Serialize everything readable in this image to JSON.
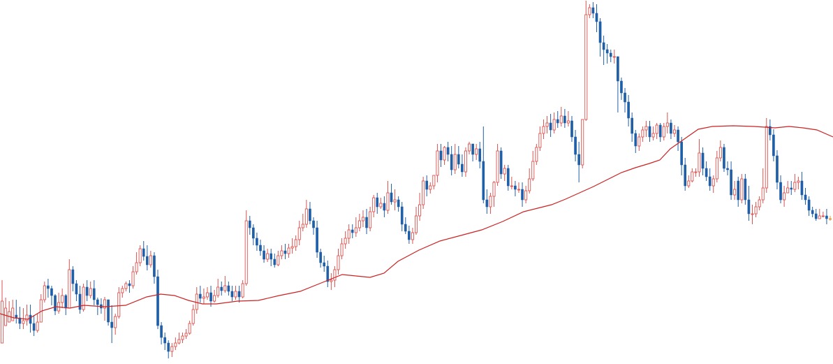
{
  "chart_data": {
    "type": "candlestick",
    "title": "",
    "xlabel": "",
    "ylabel": "",
    "grid": false,
    "legend": "none",
    "ylim": [
      0,
      521
    ],
    "colors": {
      "up": "#d9534f",
      "down": "#1f5fa8",
      "ma": "#cc2222",
      "last": "#e39a3a",
      "background": "#ffffff"
    },
    "candles": [
      [
        30,
        90,
        120,
        55
      ],
      [
        55,
        80,
        95,
        60
      ],
      [
        60,
        75,
        90,
        62
      ],
      [
        62,
        80,
        92,
        70
      ],
      [
        70,
        66,
        92,
        58
      ],
      [
        66,
        58,
        82,
        50
      ],
      [
        58,
        62,
        80,
        50
      ],
      [
        62,
        70,
        85,
        55
      ],
      [
        70,
        58,
        85,
        45
      ],
      [
        58,
        48,
        70,
        40
      ],
      [
        48,
        60,
        72,
        45
      ],
      [
        60,
        92,
        100,
        60
      ],
      [
        92,
        112,
        118,
        88
      ],
      [
        112,
        108,
        122,
        95
      ],
      [
        108,
        98,
        112,
        84
      ],
      [
        98,
        76,
        100,
        70
      ],
      [
        76,
        88,
        102,
        72
      ],
      [
        88,
        98,
        108,
        80
      ],
      [
        98,
        80,
        100,
        70
      ],
      [
        80,
        135,
        150,
        80
      ],
      [
        135,
        115,
        140,
        104
      ],
      [
        115,
        100,
        120,
        90
      ],
      [
        100,
        78,
        112,
        72
      ],
      [
        78,
        110,
        115,
        75
      ],
      [
        110,
        98,
        120,
        90
      ],
      [
        98,
        108,
        118,
        94
      ],
      [
        108,
        92,
        120,
        84
      ],
      [
        92,
        85,
        95,
        70
      ],
      [
        85,
        80,
        94,
        72
      ],
      [
        80,
        92,
        96,
        62
      ],
      [
        92,
        60,
        92,
        55
      ],
      [
        60,
        52,
        84,
        30
      ],
      [
        52,
        68,
        72,
        42
      ],
      [
        68,
        102,
        110,
        65
      ],
      [
        102,
        108,
        112,
        95
      ],
      [
        108,
        115,
        118,
        104
      ],
      [
        115,
        112,
        120,
        102
      ],
      [
        112,
        132,
        140,
        108
      ],
      [
        132,
        145,
        160,
        128
      ],
      [
        145,
        165,
        170,
        140
      ],
      [
        165,
        154,
        176,
        148
      ],
      [
        154,
        142,
        170,
        134
      ],
      [
        142,
        155,
        162,
        138
      ],
      [
        155,
        125,
        160,
        115
      ],
      [
        125,
        55,
        135,
        50
      ],
      [
        55,
        38,
        60,
        28
      ],
      [
        38,
        30,
        45,
        20
      ],
      [
        30,
        18,
        34,
        8
      ],
      [
        18,
        25,
        30,
        10
      ],
      [
        25,
        30,
        38,
        20
      ],
      [
        30,
        35,
        45,
        28
      ],
      [
        35,
        40,
        45,
        30
      ],
      [
        40,
        44,
        50,
        36
      ],
      [
        44,
        58,
        62,
        42
      ],
      [
        58,
        78,
        85,
        55
      ],
      [
        78,
        100,
        110,
        72
      ],
      [
        100,
        94,
        112,
        88
      ],
      [
        94,
        96,
        108,
        86
      ],
      [
        96,
        102,
        110,
        92
      ],
      [
        102,
        90,
        112,
        82
      ],
      [
        90,
        98,
        106,
        88
      ],
      [
        98,
        110,
        122,
        95
      ],
      [
        110,
        105,
        118,
        98
      ],
      [
        105,
        112,
        126,
        102
      ],
      [
        112,
        104,
        118,
        98
      ],
      [
        104,
        96,
        112,
        90
      ],
      [
        96,
        104,
        112,
        92
      ],
      [
        104,
        96,
        112,
        88
      ],
      [
        96,
        115,
        120,
        94
      ],
      [
        115,
        205,
        220,
        112
      ],
      [
        205,
        195,
        212,
        185
      ],
      [
        195,
        180,
        200,
        170
      ],
      [
        180,
        170,
        188,
        162
      ],
      [
        170,
        162,
        178,
        155
      ],
      [
        162,
        150,
        170,
        145
      ],
      [
        150,
        158,
        165,
        146
      ],
      [
        158,
        150,
        165,
        140
      ],
      [
        150,
        142,
        158,
        138
      ],
      [
        142,
        155,
        162,
        140
      ],
      [
        155,
        162,
        170,
        150
      ],
      [
        162,
        158,
        172,
        150
      ],
      [
        158,
        166,
        172,
        152
      ],
      [
        166,
        168,
        180,
        158
      ],
      [
        168,
        178,
        184,
        162
      ],
      [
        178,
        195,
        205,
        170
      ],
      [
        195,
        200,
        215,
        190
      ],
      [
        200,
        222,
        235,
        195
      ],
      [
        222,
        205,
        232,
        200
      ],
      [
        205,
        195,
        210,
        185
      ],
      [
        195,
        160,
        205,
        152
      ],
      [
        160,
        145,
        165,
        138
      ],
      [
        145,
        140,
        155,
        132
      ],
      [
        140,
        118,
        148,
        110
      ],
      [
        118,
        120,
        130,
        106
      ],
      [
        120,
        135,
        140,
        110
      ],
      [
        135,
        155,
        165,
        128
      ],
      [
        155,
        172,
        180,
        150
      ],
      [
        172,
        180,
        190,
        165
      ],
      [
        180,
        192,
        200,
        172
      ],
      [
        192,
        188,
        200,
        180
      ],
      [
        188,
        195,
        210,
        182
      ],
      [
        195,
        205,
        215,
        190
      ],
      [
        205,
        210,
        220,
        196
      ],
      [
        210,
        195,
        222,
        186
      ],
      [
        195,
        218,
        225,
        190
      ],
      [
        218,
        238,
        242,
        210
      ],
      [
        238,
        225,
        245,
        215
      ],
      [
        225,
        230,
        238,
        222
      ],
      [
        230,
        220,
        240,
        210
      ],
      [
        220,
        245,
        262,
        215
      ],
      [
        245,
        232,
        258,
        228
      ],
      [
        232,
        235,
        250,
        220
      ],
      [
        235,
        225,
        240,
        218
      ],
      [
        225,
        200,
        232,
        190
      ],
      [
        200,
        190,
        210,
        186
      ],
      [
        190,
        178,
        198,
        172
      ],
      [
        178,
        188,
        195,
        172
      ],
      [
        188,
        212,
        225,
        185
      ],
      [
        212,
        228,
        245,
        205
      ],
      [
        228,
        262,
        268,
        222
      ],
      [
        262,
        250,
        270,
        240
      ],
      [
        250,
        255,
        260,
        244
      ],
      [
        255,
        270,
        270,
        250
      ],
      [
        270,
        305,
        315,
        260
      ],
      [
        305,
        292,
        315,
        282
      ],
      [
        292,
        310,
        312,
        285
      ],
      [
        310,
        300,
        318,
        290
      ],
      [
        300,
        278,
        312,
        270
      ],
      [
        278,
        300,
        315,
        272
      ],
      [
        300,
        286,
        312,
        280
      ],
      [
        286,
        275,
        300,
        268
      ],
      [
        275,
        305,
        310,
        268
      ],
      [
        305,
        315,
        318,
        300
      ],
      [
        315,
        300,
        315,
        290
      ],
      [
        300,
        308,
        315,
        292
      ],
      [
        308,
        290,
        318,
        280
      ],
      [
        290,
        235,
        340,
        230
      ],
      [
        235,
        225,
        250,
        215
      ],
      [
        225,
        240,
        245,
        215
      ],
      [
        240,
        260,
        262,
        225
      ],
      [
        260,
        305,
        315,
        255
      ],
      [
        305,
        272,
        310,
        265
      ],
      [
        272,
        280,
        285,
        262
      ],
      [
        280,
        255,
        285,
        248
      ],
      [
        255,
        255,
        268,
        250
      ],
      [
        255,
        250,
        262,
        240
      ],
      [
        250,
        250,
        260,
        245
      ],
      [
        250,
        235,
        260,
        225
      ],
      [
        235,
        248,
        255,
        230
      ],
      [
        248,
        265,
        280,
        244
      ],
      [
        265,
        290,
        305,
        262
      ],
      [
        290,
        310,
        315,
        285
      ],
      [
        310,
        330,
        340,
        305
      ],
      [
        330,
        340,
        350,
        322
      ],
      [
        340,
        345,
        355,
        330
      ],
      [
        345,
        335,
        358,
        325
      ],
      [
        335,
        350,
        360,
        330
      ],
      [
        350,
        345,
        362,
        338
      ],
      [
        345,
        355,
        368,
        340
      ],
      [
        355,
        345,
        365,
        338
      ],
      [
        345,
        348,
        362,
        340
      ],
      [
        348,
        325,
        355,
        318
      ],
      [
        325,
        300,
        335,
        290
      ],
      [
        300,
        285,
        318,
        260
      ],
      [
        285,
        350,
        350,
        280
      ],
      [
        350,
        500,
        520,
        348
      ],
      [
        500,
        510,
        515,
        495
      ],
      [
        510,
        502,
        518,
        495
      ],
      [
        502,
        490,
        515,
        475
      ],
      [
        490,
        460,
        495,
        440
      ],
      [
        460,
        450,
        470,
        428
      ],
      [
        450,
        445,
        458,
        430
      ],
      [
        445,
        440,
        450,
        432
      ],
      [
        440,
        440,
        450,
        430
      ],
      [
        440,
        405,
        410,
        360
      ],
      [
        405,
        388,
        410,
        378
      ],
      [
        388,
        375,
        395,
        360
      ],
      [
        375,
        352,
        385,
        340
      ],
      [
        352,
        330,
        360,
        318
      ],
      [
        330,
        312,
        335,
        302
      ],
      [
        312,
        325,
        330,
        305
      ],
      [
        325,
        335,
        340,
        318
      ],
      [
        335,
        340,
        348,
        325
      ],
      [
        340,
        325,
        348,
        318
      ],
      [
        325,
        330,
        340,
        320
      ],
      [
        330,
        342,
        345,
        322
      ],
      [
        342,
        325,
        345,
        318
      ],
      [
        325,
        340,
        345,
        320
      ],
      [
        340,
        345,
        360,
        330
      ],
      [
        345,
        330,
        350,
        322
      ],
      [
        330,
        335,
        342,
        325
      ],
      [
        335,
        318,
        340,
        305
      ],
      [
        318,
        285,
        325,
        270
      ],
      [
        285,
        255,
        295,
        248
      ],
      [
        255,
        262,
        270,
        252
      ],
      [
        262,
        275,
        280,
        260
      ],
      [
        275,
        275,
        280,
        268
      ],
      [
        275,
        302,
        322,
        268
      ],
      [
        302,
        280,
        310,
        270
      ],
      [
        280,
        268,
        290,
        262
      ],
      [
        268,
        255,
        280,
        248
      ],
      [
        255,
        265,
        270,
        245
      ],
      [
        265,
        295,
        305,
        260
      ],
      [
        295,
        310,
        320,
        290
      ],
      [
        310,
        280,
        315,
        275
      ],
      [
        280,
        278,
        290,
        270
      ],
      [
        278,
        242,
        290,
        235
      ],
      [
        242,
        250,
        262,
        235
      ],
      [
        262,
        235,
        268,
        225
      ],
      [
        235,
        265,
        272,
        230
      ],
      [
        265,
        235,
        272,
        228
      ],
      [
        235,
        215,
        255,
        205
      ],
      [
        215,
        215,
        228,
        200
      ],
      [
        215,
        225,
        232,
        210
      ],
      [
        225,
        235,
        240,
        220
      ],
      [
        235,
        252,
        280,
        230
      ],
      [
        252,
        340,
        352,
        245
      ],
      [
        340,
        328,
        350,
        320
      ],
      [
        328,
        298,
        336,
        290
      ],
      [
        298,
        260,
        306,
        250
      ],
      [
        260,
        235,
        270,
        230
      ],
      [
        235,
        245,
        255,
        225
      ],
      [
        245,
        252,
        262,
        245
      ],
      [
        252,
        250,
        262,
        242
      ],
      [
        250,
        260,
        272,
        246
      ],
      [
        260,
        262,
        268,
        250
      ],
      [
        262,
        242,
        275,
        235
      ],
      [
        242,
        235,
        252,
        228
      ],
      [
        235,
        220,
        240,
        212
      ],
      [
        220,
        215,
        225,
        210
      ],
      [
        215,
        208,
        222,
        205
      ],
      [
        208,
        212,
        222,
        208
      ],
      [
        212,
        212,
        218,
        210
      ],
      [
        212,
        208,
        222,
        200
      ],
      [
        208,
        208,
        212,
        205
      ]
    ],
    "moving_average": [
      [
        0,
        72
      ],
      [
        20,
        66
      ],
      [
        40,
        64
      ],
      [
        60,
        76
      ],
      [
        80,
        82
      ],
      [
        100,
        80
      ],
      [
        120,
        84
      ],
      [
        150,
        82
      ],
      [
        180,
        84
      ],
      [
        210,
        96
      ],
      [
        230,
        100
      ],
      [
        250,
        98
      ],
      [
        270,
        91
      ],
      [
        290,
        86
      ],
      [
        310,
        86
      ],
      [
        340,
        90
      ],
      [
        370,
        91
      ],
      [
        400,
        98
      ],
      [
        430,
        104
      ],
      [
        460,
        116
      ],
      [
        490,
        128
      ],
      [
        510,
        126
      ],
      [
        530,
        124
      ],
      [
        550,
        130
      ],
      [
        570,
        147
      ],
      [
        600,
        163
      ],
      [
        630,
        176
      ],
      [
        660,
        184
      ],
      [
        690,
        192
      ],
      [
        720,
        204
      ],
      [
        750,
        218
      ],
      [
        770,
        223
      ],
      [
        790,
        228
      ],
      [
        810,
        236
      ],
      [
        830,
        245
      ],
      [
        850,
        254
      ],
      [
        870,
        264
      ],
      [
        890,
        274
      ],
      [
        910,
        281
      ],
      [
        930,
        287
      ],
      [
        945,
        292
      ],
      [
        960,
        308
      ],
      [
        980,
        322
      ],
      [
        1000,
        336
      ],
      [
        1020,
        340
      ],
      [
        1050,
        341
      ],
      [
        1080,
        340
      ],
      [
        1110,
        338
      ],
      [
        1130,
        340
      ],
      [
        1150,
        338
      ],
      [
        1170,
        335
      ],
      [
        1193,
        325
      ]
    ]
  }
}
